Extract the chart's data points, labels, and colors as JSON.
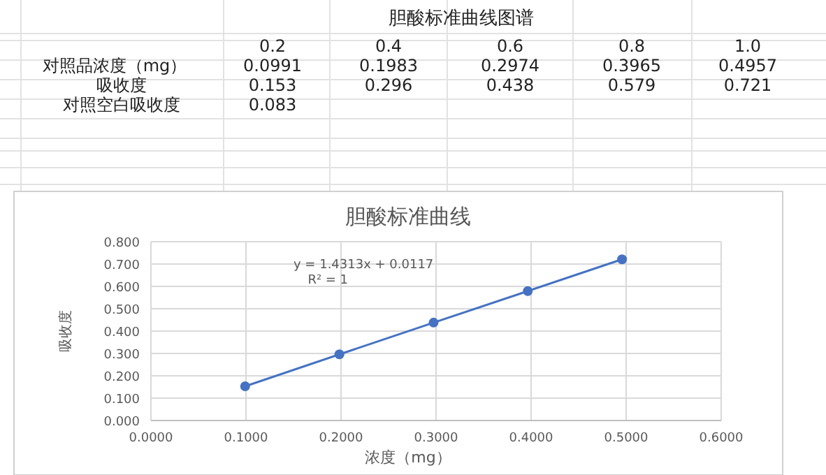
{
  "chart_data": {
    "type": "line",
    "title": "胆酸标准曲线",
    "xlabel": "浓度（mg）",
    "ylabel": "吸收度",
    "x": [
      0.0991,
      0.1983,
      0.2974,
      0.3965,
      0.4957
    ],
    "series": [
      {
        "color": "#4472c4",
        "values": [
          0.153,
          0.296,
          0.438,
          0.579,
          0.721
        ]
      }
    ],
    "xlim": [
      0,
      0.6
    ],
    "xticks": [
      {
        "value": 0,
        "label": "0.0000"
      },
      {
        "value": 0.1,
        "label": "0.1000"
      },
      {
        "value": 0.2,
        "label": "0.2000"
      },
      {
        "value": 0.3,
        "label": "0.3000"
      },
      {
        "value": 0.4,
        "label": "0.4000"
      },
      {
        "value": 0.5,
        "label": "0.5000"
      },
      {
        "value": 0.6,
        "label": "0.6000"
      }
    ],
    "ylim": [
      0,
      0.8
    ],
    "yticks": [
      {
        "value": 0,
        "label": "0.000"
      },
      {
        "value": 0.1,
        "label": "0.100"
      },
      {
        "value": 0.2,
        "label": "0.200"
      },
      {
        "value": 0.3,
        "label": "0.300"
      },
      {
        "value": 0.4,
        "label": "0.400"
      },
      {
        "value": 0.5,
        "label": "0.500"
      },
      {
        "value": 0.6,
        "label": "0.600"
      },
      {
        "value": 0.7,
        "label": "0.700"
      },
      {
        "value": 0.8,
        "label": "0.800"
      }
    ],
    "grid": true,
    "marker": "circle",
    "line_style": "solid",
    "annotations": [
      "胆酸标准曲线图谱",
      "0.2",
      "0.4",
      "0.6",
      "0.8",
      "1.0",
      "对照品浓度（mg）",
      "吸收度",
      "对照空白吸收度",
      "0.0991",
      "0.1983",
      "0.2974",
      "0.3965",
      "0.4957",
      "0.153",
      "0.296",
      "0.438",
      "0.579",
      "0.721",
      "0.083",
      "y = 1.4313x + 0.0117",
      "R² = 1"
    ]
  }
}
